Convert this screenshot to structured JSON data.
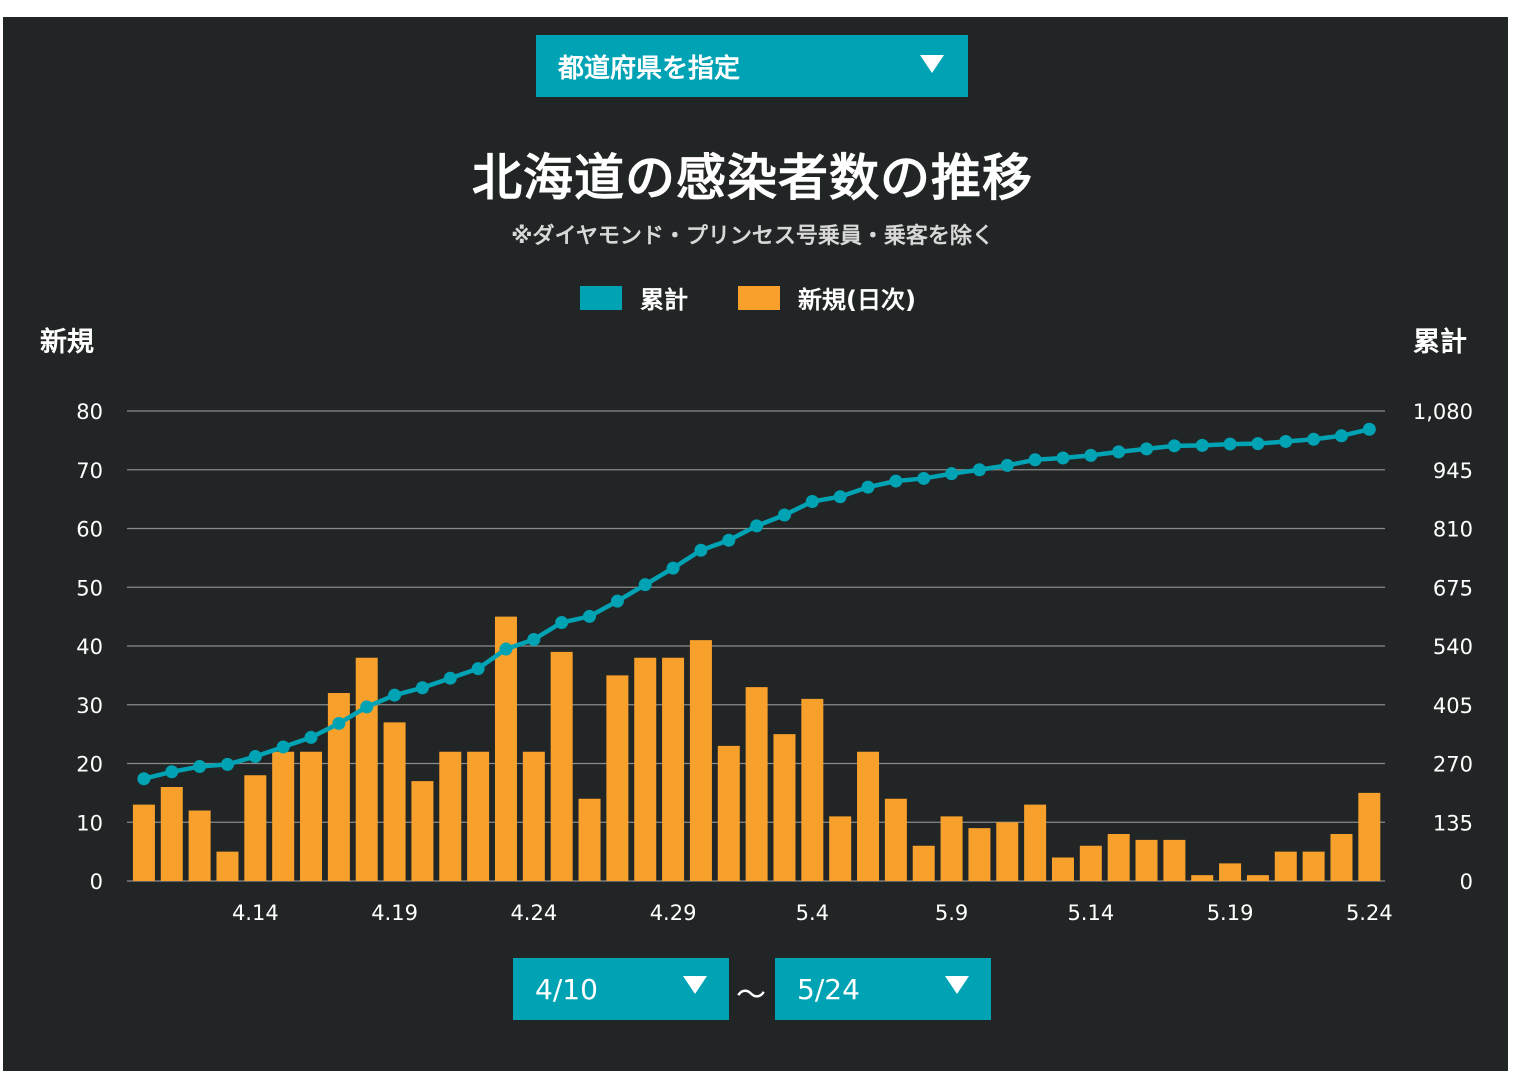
{
  "prefecture_select": {
    "label": "都道府県を指定"
  },
  "title": "北海道の感染者数の推移",
  "subtitle": "※ダイヤモンド・プリンセス号乗員・乗客を除く",
  "left_axis_title": "新規",
  "right_axis_title": "累計",
  "date_range": {
    "start": "4/10",
    "separator": "～",
    "end": "5/24"
  },
  "colors": {
    "cumulative": "#00a3b4",
    "daily": "#f7a02b",
    "background": "#222525",
    "grid": "#8a8a8a"
  },
  "chart_data": {
    "type": "bar",
    "title": "北海道の感染者数の推移",
    "categories": [
      "4/10",
      "4/11",
      "4/12",
      "4/13",
      "4/14",
      "4/15",
      "4/16",
      "4/17",
      "4/18",
      "4/19",
      "4/20",
      "4/21",
      "4/22",
      "4/23",
      "4/24",
      "4/25",
      "4/26",
      "4/27",
      "4/28",
      "4/29",
      "4/30",
      "5/1",
      "5/2",
      "5/3",
      "5/4",
      "5/5",
      "5/6",
      "5/7",
      "5/8",
      "5/9",
      "5/10",
      "5/11",
      "5/12",
      "5/13",
      "5/14",
      "5/15",
      "5/16",
      "5/17",
      "5/18",
      "5/19",
      "5/20",
      "5/21",
      "5/22",
      "5/23",
      "5/24"
    ],
    "x_tick_labels": [
      "4.14",
      "4.19",
      "4.24",
      "4.29",
      "5.4",
      "5.9",
      "5.14",
      "5.19",
      "5.24"
    ],
    "x_tick_indices": [
      4,
      9,
      14,
      19,
      24,
      29,
      34,
      39,
      44
    ],
    "series": [
      {
        "name": "新規(日次)",
        "axis": "left",
        "type": "bar",
        "values": [
          13,
          16,
          12,
          5,
          18,
          22,
          22,
          32,
          38,
          27,
          17,
          22,
          22,
          45,
          22,
          39,
          14,
          35,
          38,
          38,
          41,
          23,
          33,
          25,
          31,
          11,
          22,
          14,
          6,
          11,
          9,
          10,
          13,
          4,
          6,
          8,
          7,
          7,
          1,
          3,
          1,
          5,
          5,
          8,
          15
        ]
      },
      {
        "name": "累計",
        "axis": "right",
        "type": "line",
        "values": [
          235,
          251,
          263,
          268,
          286,
          308,
          330,
          362,
          400,
          427,
          444,
          466,
          488,
          533,
          555,
          594,
          608,
          643,
          681,
          719,
          760,
          783,
          816,
          841,
          872,
          883,
          905,
          919,
          925,
          936,
          945,
          955,
          968,
          972,
          978,
          986,
          993,
          1000,
          1001,
          1004,
          1005,
          1010,
          1015,
          1023,
          1038
        ]
      }
    ],
    "left_axis": {
      "ticks": [
        "0",
        "10",
        "20",
        "30",
        "40",
        "50",
        "60",
        "70",
        "80"
      ],
      "ylim": [
        0,
        80
      ]
    },
    "right_axis": {
      "ticks": [
        "0",
        "135",
        "270",
        "405",
        "540",
        "675",
        "810",
        "945",
        "1,080"
      ],
      "ylim": [
        0,
        1080
      ]
    },
    "legend_position": "top-center",
    "grid": true
  }
}
